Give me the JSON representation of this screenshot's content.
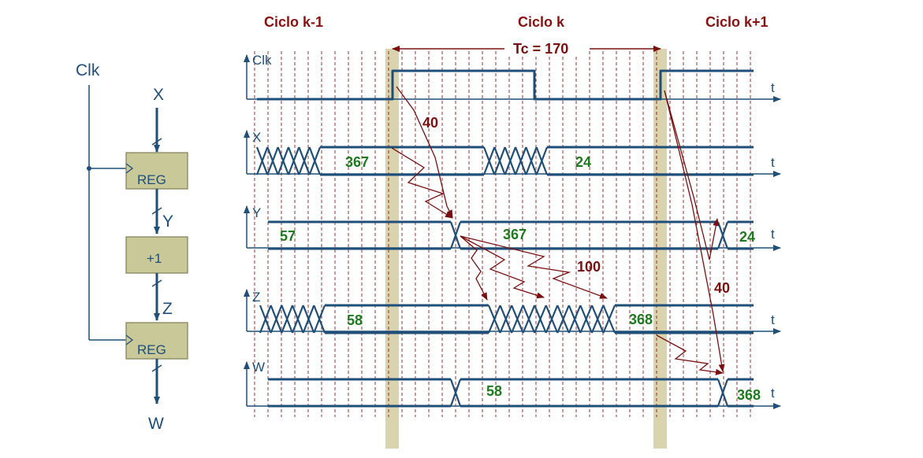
{
  "colors": {
    "wire": "#1f4e79",
    "box_fill": "#c8c899",
    "box_stroke": "#7f7f55",
    "band": "#d9d4ad",
    "grid": "#8b1010",
    "arrow": "#7b0f0f",
    "value": "#1e7a1e"
  },
  "circuit": {
    "clk": "Clk",
    "input": "X",
    "reg1": "REG",
    "wire_y": "Y",
    "adder": "+1",
    "wire_z": "Z",
    "reg2": "REG",
    "output": "W"
  },
  "cycles": {
    "prev": "Ciclo k-1",
    "curr": "Ciclo k",
    "next": "Ciclo k+1",
    "period": "Tc = 170"
  },
  "time_label": "t",
  "signals": {
    "clk": {
      "name": "Clk"
    },
    "x": {
      "name": "X",
      "v1": "367",
      "v2": "24"
    },
    "y": {
      "name": "Y",
      "v0": "57",
      "v1": "367",
      "v2": "24"
    },
    "z": {
      "name": "Z",
      "v1": "58",
      "v2": "368"
    },
    "w": {
      "name": "W",
      "v1": "58",
      "v2": "368"
    }
  },
  "delays": {
    "clk_to_q": "40",
    "adder": "100",
    "clk_to_q_next": "40"
  }
}
